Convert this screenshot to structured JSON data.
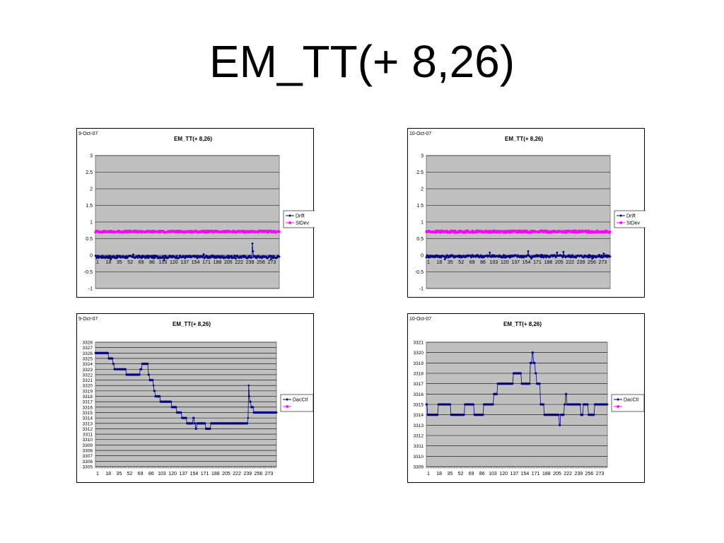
{
  "slide": {
    "title": "EM_TT(+ 8,26)"
  },
  "chart_data": [
    {
      "type": "line",
      "date": "9-Oct-07",
      "title": "EM_TT(+ 8,26)",
      "ylim": [
        -1,
        3
      ],
      "yticks": [
        3,
        2.5,
        2,
        1.5,
        1,
        0.5,
        0,
        -0.5,
        -1
      ],
      "xticks": [
        1,
        18,
        35,
        52,
        69,
        86,
        103,
        120,
        137,
        154,
        171,
        188,
        205,
        222,
        239,
        256,
        273
      ],
      "n_points": 288,
      "legend_position": "right",
      "grid": true,
      "series": [
        {
          "name": "Drift",
          "color": "#000080",
          "marker": "diamond",
          "base": -0.05,
          "noise": 0.04,
          "spikes": [
            [
              25,
              -0.12
            ],
            [
              60,
              0.02
            ],
            [
              108,
              -0.15
            ],
            [
              170,
              0.03
            ],
            [
              220,
              -0.1
            ],
            [
              246,
              0.35
            ],
            [
              247,
              0.12
            ],
            [
              275,
              -0.12
            ]
          ]
        },
        {
          "name": "StDev",
          "color": "#ff00ff",
          "marker": "square",
          "base": 0.71,
          "noise": 0.025,
          "spikes": []
        }
      ]
    },
    {
      "type": "line",
      "date": "10-Oct-07",
      "title": "EM_TT(+ 8,26)",
      "ylim": [
        -1,
        3
      ],
      "yticks": [
        3,
        2.5,
        2,
        1.5,
        1,
        0.5,
        0,
        -0.5,
        -1
      ],
      "xticks": [
        1,
        18,
        35,
        52,
        69,
        86,
        103,
        120,
        137,
        154,
        171,
        188,
        205,
        222,
        239,
        256,
        273
      ],
      "n_points": 288,
      "legend_position": "right",
      "grid": true,
      "series": [
        {
          "name": "Drift",
          "color": "#000080",
          "marker": "diamond",
          "base": -0.03,
          "noise": 0.04,
          "spikes": [
            [
              30,
              -0.12
            ],
            [
              100,
              0.08
            ],
            [
              160,
              0.12
            ],
            [
              165,
              -0.1
            ],
            [
              205,
              0.08
            ],
            [
              215,
              0.1
            ],
            [
              260,
              -0.1
            ],
            [
              278,
              0.05
            ]
          ]
        },
        {
          "name": "StDev",
          "color": "#ff00ff",
          "marker": "square",
          "base": 0.71,
          "noise": 0.03,
          "spikes": []
        }
      ]
    },
    {
      "type": "line",
      "date": "9-Oct-07",
      "title": "EM_TT(+ 8,26)",
      "ylim": [
        3305,
        3328
      ],
      "yticks": [
        3328,
        3327,
        3326,
        3325,
        3324,
        3323,
        3322,
        3321,
        3320,
        3319,
        3318,
        3317,
        3316,
        3315,
        3314,
        3313,
        3312,
        3311,
        3310,
        3309,
        3308,
        3307,
        3306,
        3305
      ],
      "xticks": [
        1,
        18,
        35,
        52,
        69,
        86,
        103,
        120,
        137,
        154,
        171,
        188,
        205,
        222,
        239,
        256,
        273
      ],
      "n_points": 288,
      "legend_position": "right",
      "grid": true,
      "series": [
        {
          "name": "DacCtl",
          "color": "#000080",
          "marker": "diamond",
          "steps": [
            [
              1,
              3326
            ],
            [
              22,
              3325
            ],
            [
              29,
              3324
            ],
            [
              31,
              3323
            ],
            [
              50,
              3322
            ],
            [
              72,
              3323
            ],
            [
              75,
              3324
            ],
            [
              85,
              3322
            ],
            [
              87,
              3321
            ],
            [
              93,
              3320
            ],
            [
              94,
              3319
            ],
            [
              96,
              3318
            ],
            [
              104,
              3317
            ],
            [
              122,
              3316
            ],
            [
              130,
              3315
            ],
            [
              138,
              3314
            ],
            [
              146,
              3313
            ],
            [
              156,
              3314
            ],
            [
              158,
              3313
            ],
            [
              160,
              3312
            ],
            [
              162,
              3313
            ],
            [
              176,
              3312
            ],
            [
              184,
              3313
            ],
            [
              243,
              3314
            ],
            [
              244,
              3320
            ],
            [
              245,
              3318
            ],
            [
              246,
              3317
            ],
            [
              248,
              3316
            ],
            [
              252,
              3315
            ],
            [
              288,
              3315
            ]
          ]
        },
        {
          "name": "",
          "color": "#ff00ff",
          "marker": "square",
          "steps": []
        }
      ]
    },
    {
      "type": "line",
      "date": "10-Oct-07",
      "title": "EM_TT(+ 8,26)",
      "ylim": [
        3309,
        3321
      ],
      "yticks": [
        3321,
        3320,
        3319,
        3318,
        3317,
        3316,
        3315,
        3314,
        3313,
        3312,
        3311,
        3310,
        3309
      ],
      "xticks": [
        1,
        18,
        35,
        52,
        69,
        86,
        103,
        120,
        137,
        154,
        171,
        188,
        205,
        222,
        239,
        256,
        273
      ],
      "n_points": 288,
      "legend_position": "right",
      "grid": true,
      "series": [
        {
          "name": "DacCtl",
          "color": "#000080",
          "marker": "diamond",
          "steps": [
            [
              1,
              3315
            ],
            [
              3,
              3314
            ],
            [
              20,
              3315
            ],
            [
              40,
              3314
            ],
            [
              62,
              3315
            ],
            [
              77,
              3314
            ],
            [
              92,
              3315
            ],
            [
              108,
              3316
            ],
            [
              114,
              3317
            ],
            [
              139,
              3318
            ],
            [
              152,
              3317
            ],
            [
              166,
              3319
            ],
            [
              169,
              3320
            ],
            [
              171,
              3319
            ],
            [
              174,
              3318
            ],
            [
              176,
              3317
            ],
            [
              182,
              3315
            ],
            [
              188,
              3314
            ],
            [
              212,
              3313
            ],
            [
              214,
              3314
            ],
            [
              220,
              3315
            ],
            [
              222,
              3316
            ],
            [
              224,
              3315
            ],
            [
              246,
              3314
            ],
            [
              250,
              3315
            ],
            [
              258,
              3314
            ],
            [
              268,
              3315
            ],
            [
              288,
              3315
            ]
          ]
        },
        {
          "name": "",
          "color": "#ff00ff",
          "marker": "square",
          "steps": []
        }
      ]
    }
  ]
}
